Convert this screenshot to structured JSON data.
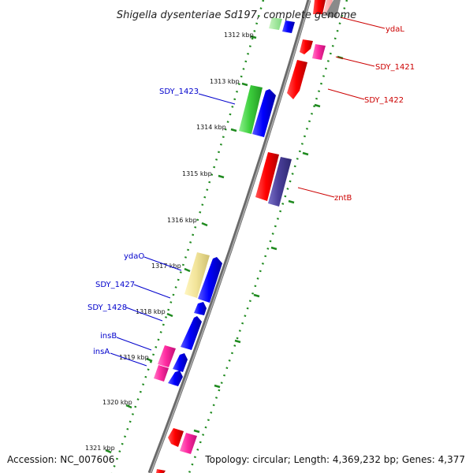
{
  "title": "Shigella dysenteriae Sd197, complete genome",
  "footer": {
    "accession": "Accession: NC_007606",
    "summary": "Topology: circular; Length: 4,369,232 bp; Genes: 4,377"
  },
  "ticks": [
    "1312 kbp",
    "1313 kbp",
    "1314 kbp",
    "1315 kbp",
    "1316 kbp",
    "1317 kbp",
    "1318 kbp",
    "1319 kbp",
    "1320 kbp",
    "1321 kbp"
  ],
  "gene_labels": {
    "forward": [
      "ydaL",
      "SDY_1421",
      "SDY_1422",
      "zntB"
    ],
    "reverse": [
      "SDY_1423",
      "ydaO",
      "SDY_1427",
      "SDY_1428",
      "insB",
      "insA"
    ]
  },
  "colors": {
    "forward_label": "#cc0000",
    "reverse_label": "#0000cc",
    "backbone": "#808080",
    "tick_dots": "#1f8a1f"
  }
}
